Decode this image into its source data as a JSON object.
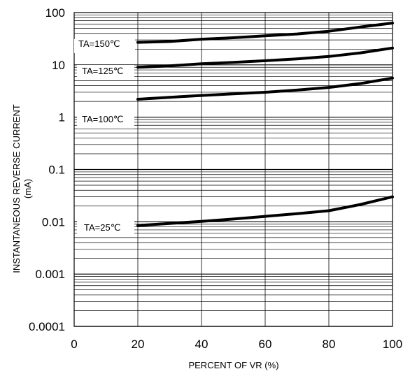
{
  "chart_data": {
    "type": "line",
    "title": "",
    "xlabel": "PERCENT OF VR (%)",
    "ylabel_line1": "INSTANTANEOUS REVERSE CURRENT",
    "ylabel_line2": "(mA)",
    "xlim": [
      0,
      100
    ],
    "ylim": [
      0.0001,
      100
    ],
    "yscale": "log",
    "grid": true,
    "x_ticks": [
      0,
      20,
      40,
      60,
      80,
      100
    ],
    "x_tick_labels": [
      "0",
      "20",
      "40",
      "60",
      "80",
      "100"
    ],
    "y_ticks": [
      0.0001,
      0.001,
      0.01,
      0.1,
      1,
      10,
      100
    ],
    "y_tick_labels": [
      "0.0001",
      "0.001",
      "0.01",
      "0.1",
      "1",
      "10",
      "100"
    ],
    "series": [
      {
        "name": "TA=150℃",
        "x": [
          20,
          30,
          40,
          50,
          60,
          70,
          80,
          90,
          100
        ],
        "y": [
          27,
          28,
          31,
          33,
          36,
          39,
          44,
          53,
          63
        ]
      },
      {
        "name": "TA=125℃",
        "x": [
          20,
          30,
          40,
          50,
          60,
          70,
          80,
          90,
          100
        ],
        "y": [
          9,
          9.6,
          10.5,
          11.2,
          12,
          13,
          14.5,
          17,
          21
        ]
      },
      {
        "name": "TA=100℃",
        "x": [
          20,
          30,
          40,
          50,
          60,
          70,
          80,
          90,
          100
        ],
        "y": [
          2.2,
          2.4,
          2.6,
          2.8,
          3.0,
          3.3,
          3.7,
          4.4,
          5.6
        ]
      },
      {
        "name": "TA=25℃",
        "x": [
          20,
          30,
          40,
          50,
          60,
          70,
          80,
          90,
          100
        ],
        "y": [
          0.0085,
          0.0093,
          0.0102,
          0.0113,
          0.0127,
          0.0143,
          0.0163,
          0.0215,
          0.03
        ]
      }
    ]
  }
}
